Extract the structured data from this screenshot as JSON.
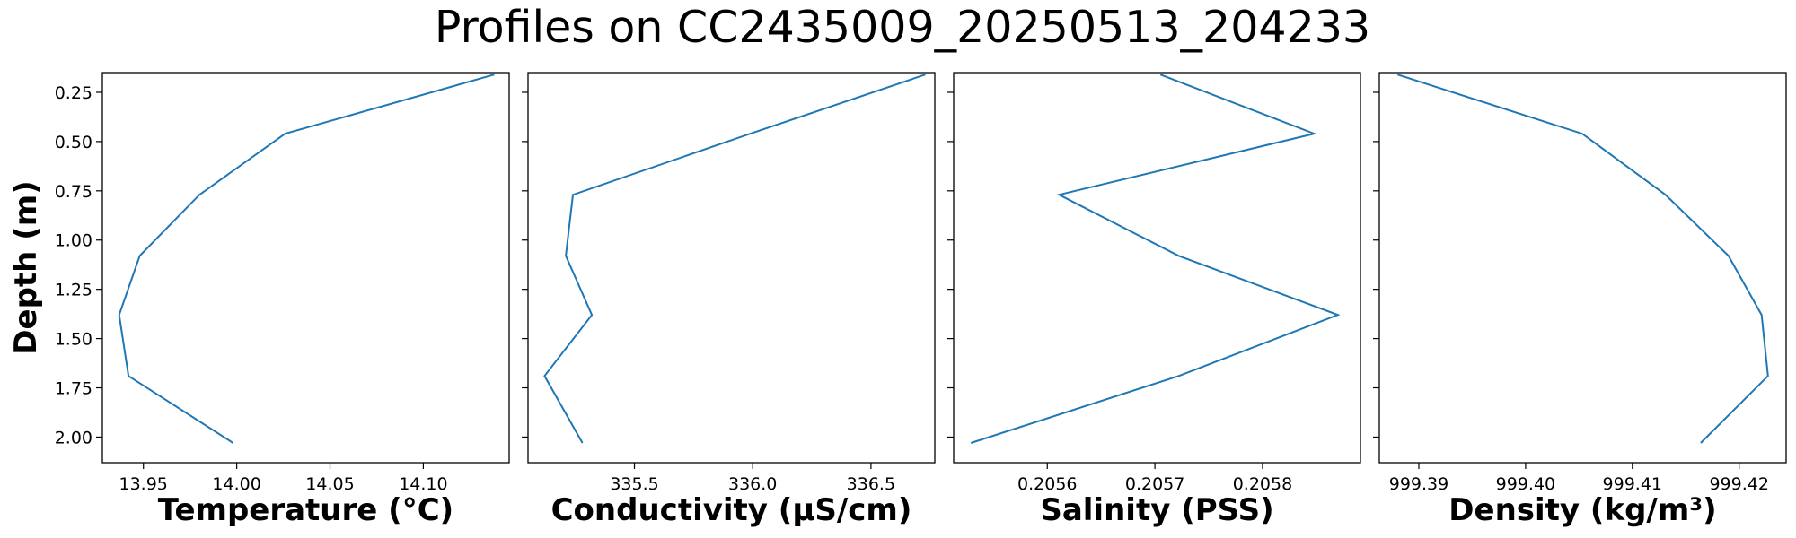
{
  "figure": {
    "title": "Profiles on CC2435009_20250513_204233"
  },
  "colors": {
    "line": "#1f77b4",
    "axes": "#000000",
    "background": "#ffffff"
  },
  "chart_data": {
    "shared_y": {
      "label": "Depth (m)",
      "inverted": true,
      "lim": [
        2.13,
        0.15
      ],
      "ticks": [
        0.25,
        0.5,
        0.75,
        1.0,
        1.25,
        1.5,
        1.75,
        2.0
      ],
      "tick_labels": [
        "0.25",
        "0.50",
        "0.75",
        "1.00",
        "1.25",
        "1.50",
        "1.75",
        "2.00"
      ]
    },
    "depth": [
      0.16,
      0.46,
      0.77,
      1.08,
      1.38,
      1.69,
      2.03
    ],
    "panels": [
      {
        "type": "line",
        "xlabel": "Temperature (°C)",
        "xlim": [
          13.928,
          14.146
        ],
        "xticks": [
          13.95,
          14.0,
          14.05,
          14.1
        ],
        "xtick_labels": [
          "13.95",
          "14.00",
          "14.05",
          "14.10"
        ],
        "x": [
          14.138,
          14.026,
          13.98,
          13.948,
          13.937,
          13.942,
          13.998
        ]
      },
      {
        "type": "line",
        "xlabel": "Conductivity (µS/cm)",
        "xlim": [
          335.05,
          336.77
        ],
        "xticks": [
          335.5,
          336.0,
          336.5
        ],
        "xtick_labels": [
          "335.5",
          "336.0",
          "336.5"
        ],
        "x": [
          336.73,
          335.99,
          335.24,
          335.21,
          335.32,
          335.12,
          335.28
        ]
      },
      {
        "type": "line",
        "xlabel": "Salinity (PSS)",
        "xlim": [
          0.205513,
          0.205891
        ],
        "xticks": [
          0.2056,
          0.2057,
          0.2058
        ],
        "xtick_labels": [
          "0.2056",
          "0.2057",
          "0.2058"
        ],
        "x": [
          0.205705,
          0.205848,
          0.205611,
          0.205722,
          0.20587,
          0.205722,
          0.205529
        ]
      },
      {
        "type": "line",
        "xlabel": "Density (kg/m³)",
        "xlim": [
          999.3863,
          999.4244
        ],
        "xticks": [
          999.39,
          999.4,
          999.41,
          999.42
        ],
        "xtick_labels": [
          "999.39",
          "999.40",
          "999.41",
          "999.42"
        ],
        "x": [
          999.388,
          999.4053,
          999.4131,
          999.419,
          999.4221,
          999.4227,
          999.4164
        ]
      }
    ]
  }
}
